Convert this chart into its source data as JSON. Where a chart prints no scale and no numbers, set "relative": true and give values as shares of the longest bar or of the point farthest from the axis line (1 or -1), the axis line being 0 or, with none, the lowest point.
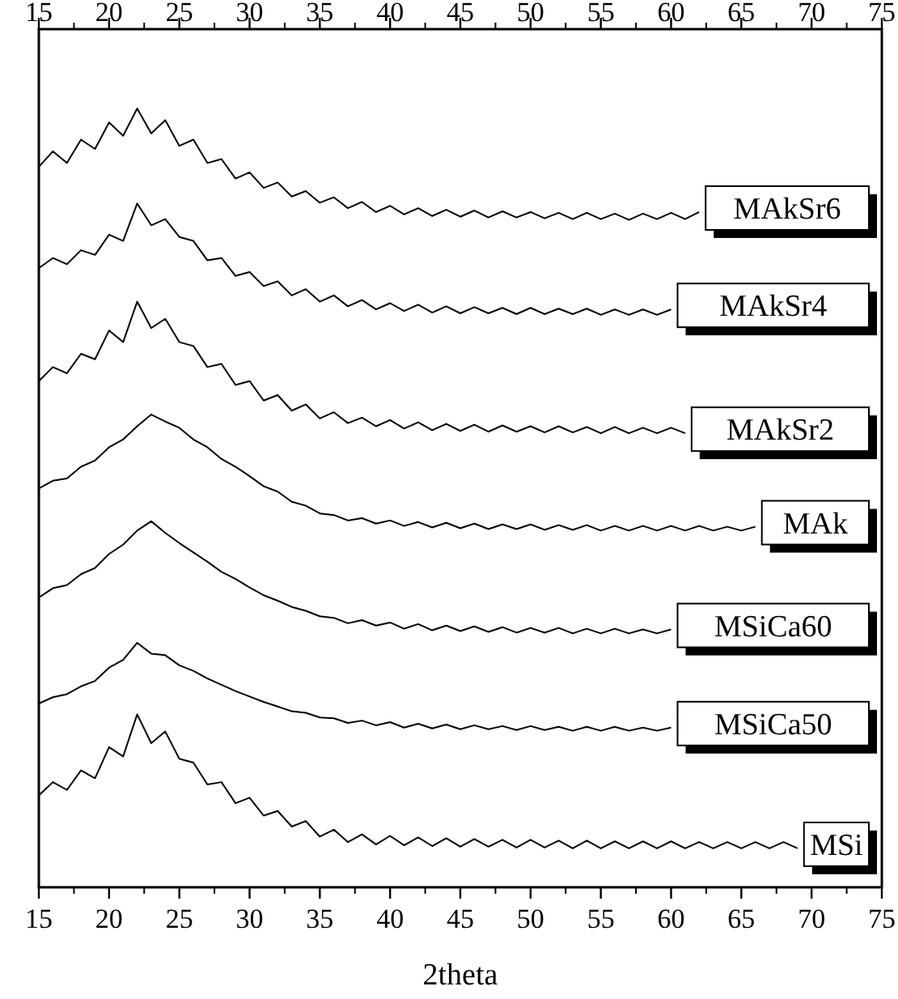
{
  "chart_data": {
    "type": "line",
    "xlabel": "2theta",
    "relative": true,
    "xlim": [
      15,
      75
    ],
    "xticks": [
      15,
      20,
      25,
      30,
      35,
      40,
      45,
      50,
      55,
      60,
      65,
      70,
      75
    ],
    "x2lim": [
      15,
      75
    ],
    "x2ticks": [
      15,
      20,
      25,
      30,
      35,
      40,
      45,
      50,
      55,
      60,
      65,
      70,
      75
    ],
    "series": [
      {
        "name": "MAkSr6",
        "color": "#000000",
        "x": [
          15,
          16,
          17,
          18,
          19,
          20,
          21,
          22,
          23,
          24,
          25,
          26,
          27,
          28,
          29,
          30,
          31,
          32,
          33,
          34,
          35,
          36,
          37,
          38,
          39,
          40,
          41,
          42,
          43,
          44,
          45,
          46,
          47,
          48,
          49,
          50,
          51,
          52,
          53,
          54,
          55,
          56,
          57,
          58,
          59,
          60,
          61,
          62
        ],
        "values": [
          0.925,
          0.945,
          0.93,
          0.96,
          0.948,
          0.982,
          0.965,
          1.0,
          0.968,
          0.985,
          0.952,
          0.96,
          0.93,
          0.935,
          0.91,
          0.918,
          0.898,
          0.905,
          0.887,
          0.894,
          0.879,
          0.886,
          0.872,
          0.88,
          0.867,
          0.875,
          0.864,
          0.872,
          0.862,
          0.87,
          0.861,
          0.869,
          0.86,
          0.868,
          0.86,
          0.867,
          0.859,
          0.866,
          0.858,
          0.866,
          0.858,
          0.865,
          0.857,
          0.865,
          0.858,
          0.866,
          0.858,
          0.867
        ]
      },
      {
        "name": "MAkSr4",
        "color": "#000000",
        "x": [
          15,
          16,
          17,
          18,
          19,
          20,
          21,
          22,
          23,
          24,
          25,
          26,
          27,
          28,
          29,
          30,
          31,
          32,
          33,
          34,
          35,
          36,
          37,
          38,
          39,
          40,
          41,
          42,
          43,
          44,
          45,
          46,
          47,
          48,
          49,
          50,
          51,
          52,
          53,
          54,
          55,
          56,
          57,
          58,
          59,
          60
        ],
        "values": [
          0.795,
          0.808,
          0.8,
          0.818,
          0.812,
          0.838,
          0.83,
          0.878,
          0.85,
          0.858,
          0.835,
          0.83,
          0.805,
          0.808,
          0.785,
          0.79,
          0.772,
          0.778,
          0.76,
          0.768,
          0.752,
          0.76,
          0.746,
          0.754,
          0.742,
          0.75,
          0.74,
          0.748,
          0.738,
          0.746,
          0.737,
          0.745,
          0.737,
          0.744,
          0.736,
          0.744,
          0.736,
          0.743,
          0.736,
          0.743,
          0.735,
          0.742,
          0.735,
          0.742,
          0.735,
          0.742
        ]
      },
      {
        "name": "MAkSr2",
        "color": "#000000",
        "x": [
          15,
          16,
          17,
          18,
          19,
          20,
          21,
          22,
          23,
          24,
          25,
          26,
          27,
          28,
          29,
          30,
          31,
          32,
          33,
          34,
          35,
          36,
          37,
          38,
          39,
          40,
          41,
          42,
          43,
          44,
          45,
          46,
          47,
          48,
          49,
          50,
          51,
          52,
          53,
          54,
          55,
          56,
          57,
          58,
          59,
          60,
          61
        ],
        "values": [
          0.65,
          0.668,
          0.66,
          0.685,
          0.678,
          0.715,
          0.7,
          0.752,
          0.718,
          0.73,
          0.7,
          0.695,
          0.668,
          0.672,
          0.645,
          0.65,
          0.625,
          0.632,
          0.612,
          0.62,
          0.602,
          0.61,
          0.596,
          0.603,
          0.592,
          0.6,
          0.589,
          0.597,
          0.587,
          0.595,
          0.586,
          0.594,
          0.585,
          0.593,
          0.585,
          0.592,
          0.584,
          0.592,
          0.584,
          0.591,
          0.583,
          0.591,
          0.583,
          0.59,
          0.583,
          0.59,
          0.583
        ]
      },
      {
        "name": "MAk",
        "color": "#000000",
        "x": [
          15,
          16,
          17,
          18,
          19,
          20,
          21,
          22,
          23,
          24,
          25,
          26,
          27,
          28,
          29,
          30,
          31,
          32,
          33,
          34,
          35,
          36,
          37,
          38,
          39,
          40,
          41,
          42,
          43,
          44,
          45,
          46,
          47,
          48,
          49,
          50,
          51,
          52,
          53,
          54,
          55,
          56,
          57,
          58,
          59,
          60,
          61,
          62,
          63,
          64,
          65,
          66
        ],
        "values": [
          0.512,
          0.522,
          0.525,
          0.54,
          0.548,
          0.565,
          0.575,
          0.592,
          0.607,
          0.598,
          0.59,
          0.575,
          0.565,
          0.55,
          0.54,
          0.528,
          0.515,
          0.508,
          0.495,
          0.49,
          0.48,
          0.478,
          0.471,
          0.474,
          0.467,
          0.471,
          0.464,
          0.469,
          0.462,
          0.468,
          0.461,
          0.467,
          0.46,
          0.466,
          0.46,
          0.466,
          0.459,
          0.465,
          0.459,
          0.465,
          0.458,
          0.464,
          0.458,
          0.464,
          0.458,
          0.464,
          0.458,
          0.464,
          0.458,
          0.463,
          0.458,
          0.463
        ]
      },
      {
        "name": "MSiCa60",
        "color": "#000000",
        "x": [
          15,
          16,
          17,
          18,
          19,
          20,
          21,
          22,
          23,
          24,
          25,
          26,
          27,
          28,
          29,
          30,
          31,
          32,
          33,
          34,
          35,
          36,
          37,
          38,
          39,
          40,
          41,
          42,
          43,
          44,
          45,
          46,
          47,
          48,
          49,
          50,
          51,
          52,
          53,
          54,
          55,
          56,
          57,
          58,
          59,
          60
        ],
        "values": [
          0.372,
          0.384,
          0.388,
          0.402,
          0.41,
          0.428,
          0.44,
          0.458,
          0.47,
          0.455,
          0.442,
          0.43,
          0.418,
          0.405,
          0.396,
          0.385,
          0.375,
          0.368,
          0.36,
          0.355,
          0.348,
          0.346,
          0.339,
          0.343,
          0.336,
          0.34,
          0.332,
          0.338,
          0.33,
          0.336,
          0.329,
          0.335,
          0.328,
          0.334,
          0.327,
          0.333,
          0.327,
          0.333,
          0.326,
          0.332,
          0.326,
          0.332,
          0.326,
          0.331,
          0.326,
          0.331
        ]
      },
      {
        "name": "MSiCa50",
        "color": "#000000",
        "x": [
          15,
          16,
          17,
          18,
          19,
          20,
          21,
          22,
          23,
          24,
          25,
          26,
          27,
          28,
          29,
          30,
          31,
          32,
          33,
          34,
          35,
          36,
          37,
          38,
          39,
          40,
          41,
          42,
          43,
          44,
          45,
          46,
          47,
          48,
          49,
          50,
          51,
          52,
          53,
          54,
          55,
          56,
          57,
          58,
          59,
          60
        ],
        "values": [
          0.236,
          0.244,
          0.248,
          0.258,
          0.265,
          0.282,
          0.292,
          0.314,
          0.3,
          0.298,
          0.285,
          0.278,
          0.268,
          0.26,
          0.252,
          0.245,
          0.238,
          0.232,
          0.226,
          0.224,
          0.218,
          0.217,
          0.211,
          0.214,
          0.208,
          0.212,
          0.205,
          0.21,
          0.204,
          0.209,
          0.203,
          0.208,
          0.203,
          0.207,
          0.202,
          0.207,
          0.202,
          0.206,
          0.201,
          0.206,
          0.201,
          0.206,
          0.201,
          0.205,
          0.201,
          0.205
        ]
      },
      {
        "name": "MSi",
        "color": "#000000",
        "x": [
          15,
          16,
          17,
          18,
          19,
          20,
          21,
          22,
          23,
          24,
          25,
          26,
          27,
          28,
          29,
          30,
          31,
          32,
          33,
          34,
          35,
          36,
          37,
          38,
          39,
          40,
          41,
          42,
          43,
          44,
          45,
          46,
          47,
          48,
          49,
          50,
          51,
          52,
          53,
          54,
          55,
          56,
          57,
          58,
          59,
          60,
          61,
          62,
          63,
          64,
          65,
          66,
          67,
          68,
          69
        ],
        "values": [
          0.118,
          0.135,
          0.125,
          0.15,
          0.14,
          0.18,
          0.168,
          0.222,
          0.185,
          0.2,
          0.165,
          0.16,
          0.132,
          0.135,
          0.108,
          0.115,
          0.092,
          0.098,
          0.078,
          0.085,
          0.065,
          0.074,
          0.058,
          0.068,
          0.055,
          0.066,
          0.054,
          0.064,
          0.053,
          0.063,
          0.052,
          0.062,
          0.052,
          0.061,
          0.051,
          0.061,
          0.051,
          0.06,
          0.05,
          0.06,
          0.05,
          0.059,
          0.05,
          0.059,
          0.05,
          0.059,
          0.05,
          0.058,
          0.05,
          0.058,
          0.05,
          0.058,
          0.05,
          0.058,
          0.05
        ]
      }
    ]
  }
}
